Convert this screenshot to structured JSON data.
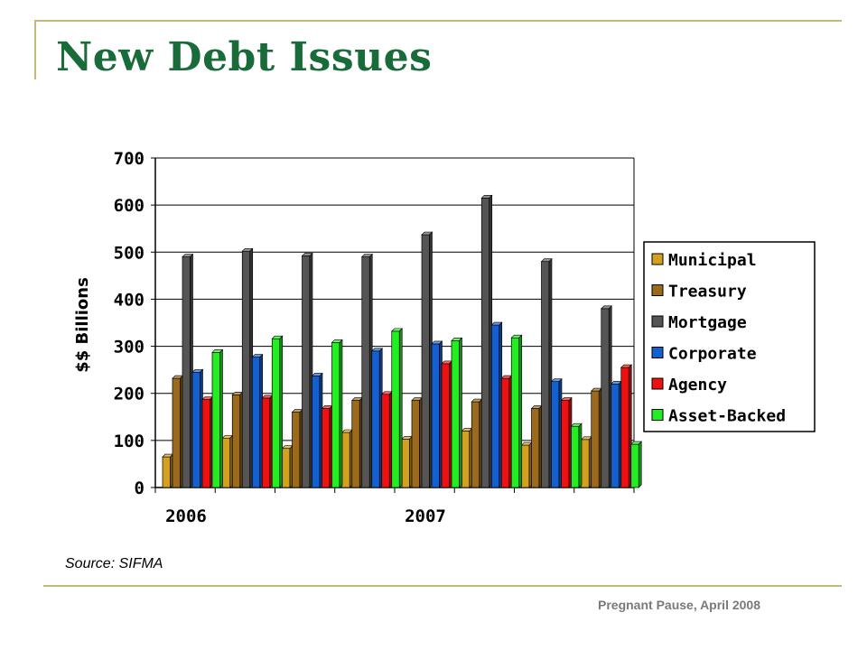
{
  "slide": {
    "title": "New Debt Issues",
    "source": "Source: SIFMA",
    "footer": "Pregnant Pause, April 2008"
  },
  "chart_data": {
    "type": "bar",
    "title": "",
    "xlabel": "",
    "ylabel": "$$ Billions",
    "ylim": [
      0,
      700
    ],
    "yticks": [
      0,
      100,
      200,
      300,
      400,
      500,
      600,
      700
    ],
    "categories": [
      "2006",
      "",
      "",
      "",
      "2007",
      "",
      "",
      ""
    ],
    "grid": true,
    "legend_position": "right",
    "series": [
      {
        "name": "Municipal",
        "color": "#d4a020",
        "values": [
          65,
          105,
          83,
          117,
          103,
          120,
          90,
          102
        ]
      },
      {
        "name": "Treasury",
        "color": "#9b6a1c",
        "values": [
          232,
          197,
          160,
          185,
          185,
          182,
          168,
          205
        ]
      },
      {
        "name": "Mortgage",
        "color": "#555555",
        "values": [
          490,
          502,
          492,
          490,
          537,
          615,
          480,
          380
        ]
      },
      {
        "name": "Corporate",
        "color": "#1560d0",
        "values": [
          245,
          277,
          237,
          290,
          305,
          345,
          225,
          220
        ]
      },
      {
        "name": "Agency",
        "color": "#ee1111",
        "values": [
          187,
          190,
          168,
          198,
          263,
          232,
          185,
          255
        ]
      },
      {
        "name": "Asset-Backed",
        "color": "#22ee22",
        "values": [
          287,
          316,
          308,
          332,
          312,
          318,
          130,
          92
        ]
      }
    ]
  }
}
